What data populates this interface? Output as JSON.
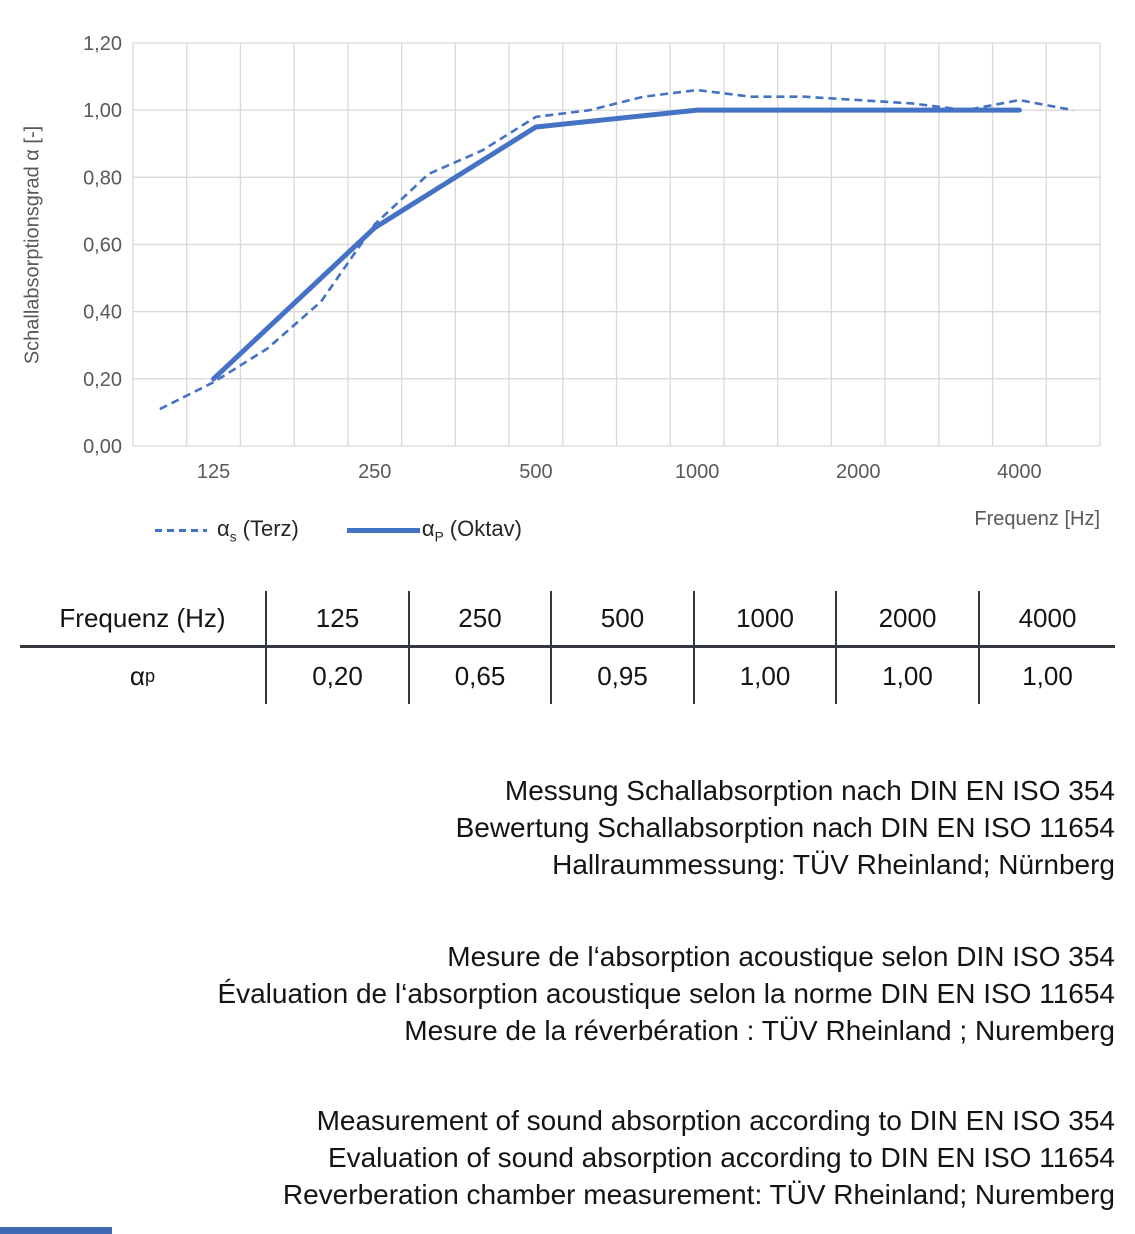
{
  "colors": {
    "series_blue": "#4472C4",
    "grid": "#D9D9D9",
    "axis_text": "#595959",
    "table_line": "#33373E",
    "footer_bar": "#3E6BB4"
  },
  "chart": {
    "ylabel": "Schallabsorptionsgrad α [-]",
    "xlabel": "Frequenz [Hz]",
    "legend": {
      "terz_alpha": "α",
      "terz_sub": "s",
      "terz_rest": " (Terz)",
      "oktav_alpha": "α",
      "oktav_sub": "P",
      "oktav_rest": " (Oktav)"
    }
  },
  "chart_data": {
    "type": "line",
    "title": "",
    "xlabel": "Frequenz [Hz]",
    "ylabel": "Schallabsorptionsgrad α [-]",
    "ylim": [
      0,
      1.2
    ],
    "ytick_step": 0.2,
    "ytick_labels": [
      "0,00",
      "0,20",
      "0,40",
      "0,60",
      "0,80",
      "1,00",
      "1,20"
    ],
    "grid": true,
    "legend_position": "bottom-left",
    "categories": [
      100,
      125,
      160,
      200,
      250,
      315,
      400,
      500,
      630,
      800,
      1000,
      1250,
      1600,
      2000,
      2500,
      3150,
      4000,
      5000
    ],
    "x_tick_labels": {
      "1": "125",
      "4": "250",
      "7": "500",
      "10": "1000",
      "13": "2000",
      "16": "4000"
    },
    "series": [
      {
        "name": "αs (Terz)",
        "style": "dashed",
        "values": [
          0.11,
          0.19,
          0.29,
          0.43,
          0.66,
          0.81,
          0.88,
          0.98,
          1.0,
          1.04,
          1.06,
          1.04,
          1.04,
          1.03,
          1.02,
          1.0,
          1.03,
          1.0
        ]
      },
      {
        "name": "αP (Oktav)",
        "style": "solid",
        "category_indices": [
          1,
          4,
          7,
          10,
          13,
          16
        ],
        "values": [
          0.2,
          0.65,
          0.95,
          1.0,
          1.0,
          1.0
        ]
      }
    ]
  },
  "table": {
    "columns": [
      "Frequenz (Hz)",
      "125",
      "250",
      "500",
      "1000",
      "2000",
      "4000"
    ],
    "row_label_alpha": "α",
    "row_label_sub": "p",
    "values": [
      "0,20",
      "0,65",
      "0,95",
      "1,00",
      "1,00",
      "1,00"
    ]
  },
  "notes": {
    "de": [
      "Messung Schallabsorption nach DIN EN ISO 354",
      "Bewertung Schallabsorption nach DIN EN ISO 11654",
      "Hallraummessung: TÜV Rheinland; Nürnberg"
    ],
    "fr": [
      "Mesure de l‘absorption acoustique selon DIN ISO 354",
      "Évaluation de l‘absorption acoustique selon la norme DIN EN ISO 11654",
      "Mesure de la réverbération : TÜV Rheinland ; Nuremberg"
    ],
    "en": [
      "Measurement of sound absorption according to DIN EN ISO 354",
      "Evaluation of sound absorption according to DIN EN ISO 11654",
      "Reverberation chamber measurement: TÜV Rheinland; Nuremberg"
    ]
  }
}
